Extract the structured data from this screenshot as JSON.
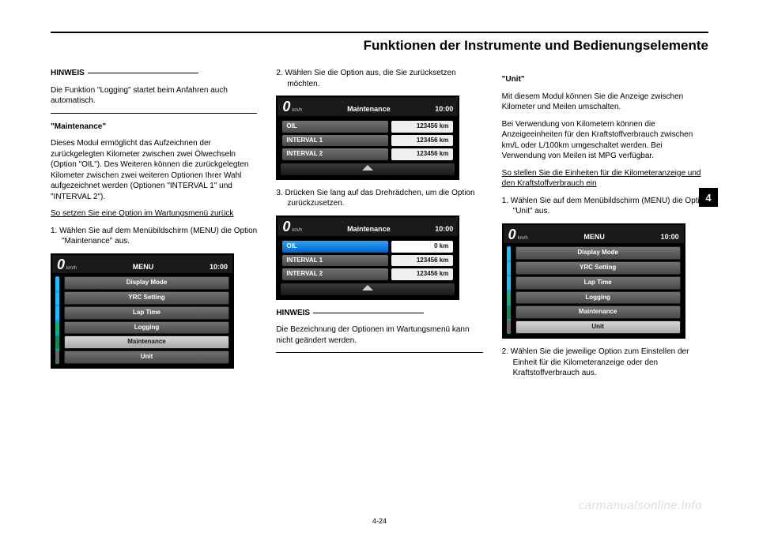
{
  "header": {
    "title": "Funktionen der Instrumente und Bedienungselemente"
  },
  "section_tab": "4",
  "page_number": "4-24",
  "watermark": "carmanualsonline.info",
  "col1": {
    "hinweis_label": "HINWEIS",
    "hinweis_text": "Die Funktion \"Logging\" startet beim Anfahren auch automatisch.",
    "maint_head": "\"Maintenance\"",
    "maint_text": "Dieses Modul ermöglicht das Aufzeichnen der zurückgelegten Kilometer zwischen zwei Ölwechseln (Option \"OIL\"). Des Weiteren können die zurückgelegten Kilometer zwischen zwei weiteren Optionen Ihrer Wahl aufgezeichnet werden (Optionen \"INTERVAL 1\" und \"INTERVAL 2\").",
    "reset_head": "So setzen Sie eine Option im Wartungsmenü zurück",
    "step1": "1.  Wählen Sie auf dem Menübildschirm (MENU) die Option \"Maintenance\" aus."
  },
  "col2": {
    "step2": "2.  Wählen Sie die Option aus, die Sie zurücksetzen möchten.",
    "step3": "3.  Drücken Sie lang auf das Drehrädchen, um die Option zurückzusetzen.",
    "hinweis_label": "HINWEIS",
    "hinweis_text": "Die Bezeichnung der Optionen im Wartungsmenü kann nicht geändert werden."
  },
  "col3": {
    "unit_head": "\"Unit\"",
    "unit_text1": "Mit diesem Modul können Sie die Anzeige zwischen Kilometer und Meilen umschalten.",
    "unit_text2": "Bei Verwendung von Kilometern können die Anzeigeeinheiten für den Kraftstoffverbrauch zwischen km/L oder L/100km umgeschaltet werden. Bei Verwendung von Meilen ist MPG verfügbar.",
    "howto_head": "So stellen Sie die Einheiten für die Kilometeranzeige und den Kraftstoffverbrauch ein",
    "step1": "1.  Wählen Sie auf dem Menübildschirm (MENU) die Option \"Unit\" aus.",
    "step2": "2.  Wählen Sie die jeweilige Option zum Einstellen der Einheit für die Kilometeranzeige oder den Kraftstoffverbrauch aus."
  },
  "screens": {
    "menu_maint": {
      "zero": "0",
      "unit": "km/h",
      "title": "MENU",
      "clock": "10:00",
      "items": [
        "Display Mode",
        "YRC Setting",
        "Lap Time",
        "Logging",
        "Maintenance",
        "Unit"
      ],
      "selected_index": 4,
      "accent_colors": [
        "#19c1ff",
        "#19c1ff",
        "#19c1ff",
        "#13b07e",
        "#0f8a56",
        "#666"
      ]
    },
    "maint_a": {
      "zero": "0",
      "unit": "km/h",
      "title": "Maintenance",
      "clock": "10:00",
      "rows": [
        {
          "label": "OIL",
          "value": "123456 km"
        },
        {
          "label": "INTERVAL 1",
          "value": "123456 km"
        },
        {
          "label": "INTERVAL 2",
          "value": "123456 km"
        }
      ],
      "selected_index": -1
    },
    "maint_b": {
      "zero": "0",
      "unit": "km/h",
      "title": "Maintenance",
      "clock": "10:00",
      "rows": [
        {
          "label": "OIL",
          "value": "0 km"
        },
        {
          "label": "INTERVAL 1",
          "value": "123456 km"
        },
        {
          "label": "INTERVAL 2",
          "value": "123456 km"
        }
      ],
      "selected_index": 0
    },
    "menu_unit": {
      "zero": "0",
      "unit": "km/h",
      "title": "MENU",
      "clock": "10:00",
      "items": [
        "Display Mode",
        "YRC Setting",
        "Lap Time",
        "Logging",
        "Maintenance",
        "Unit"
      ],
      "selected_index": 5,
      "accent_colors": [
        "#19c1ff",
        "#19c1ff",
        "#19c1ff",
        "#13b07e",
        "#0f8a56",
        "#666"
      ]
    }
  }
}
